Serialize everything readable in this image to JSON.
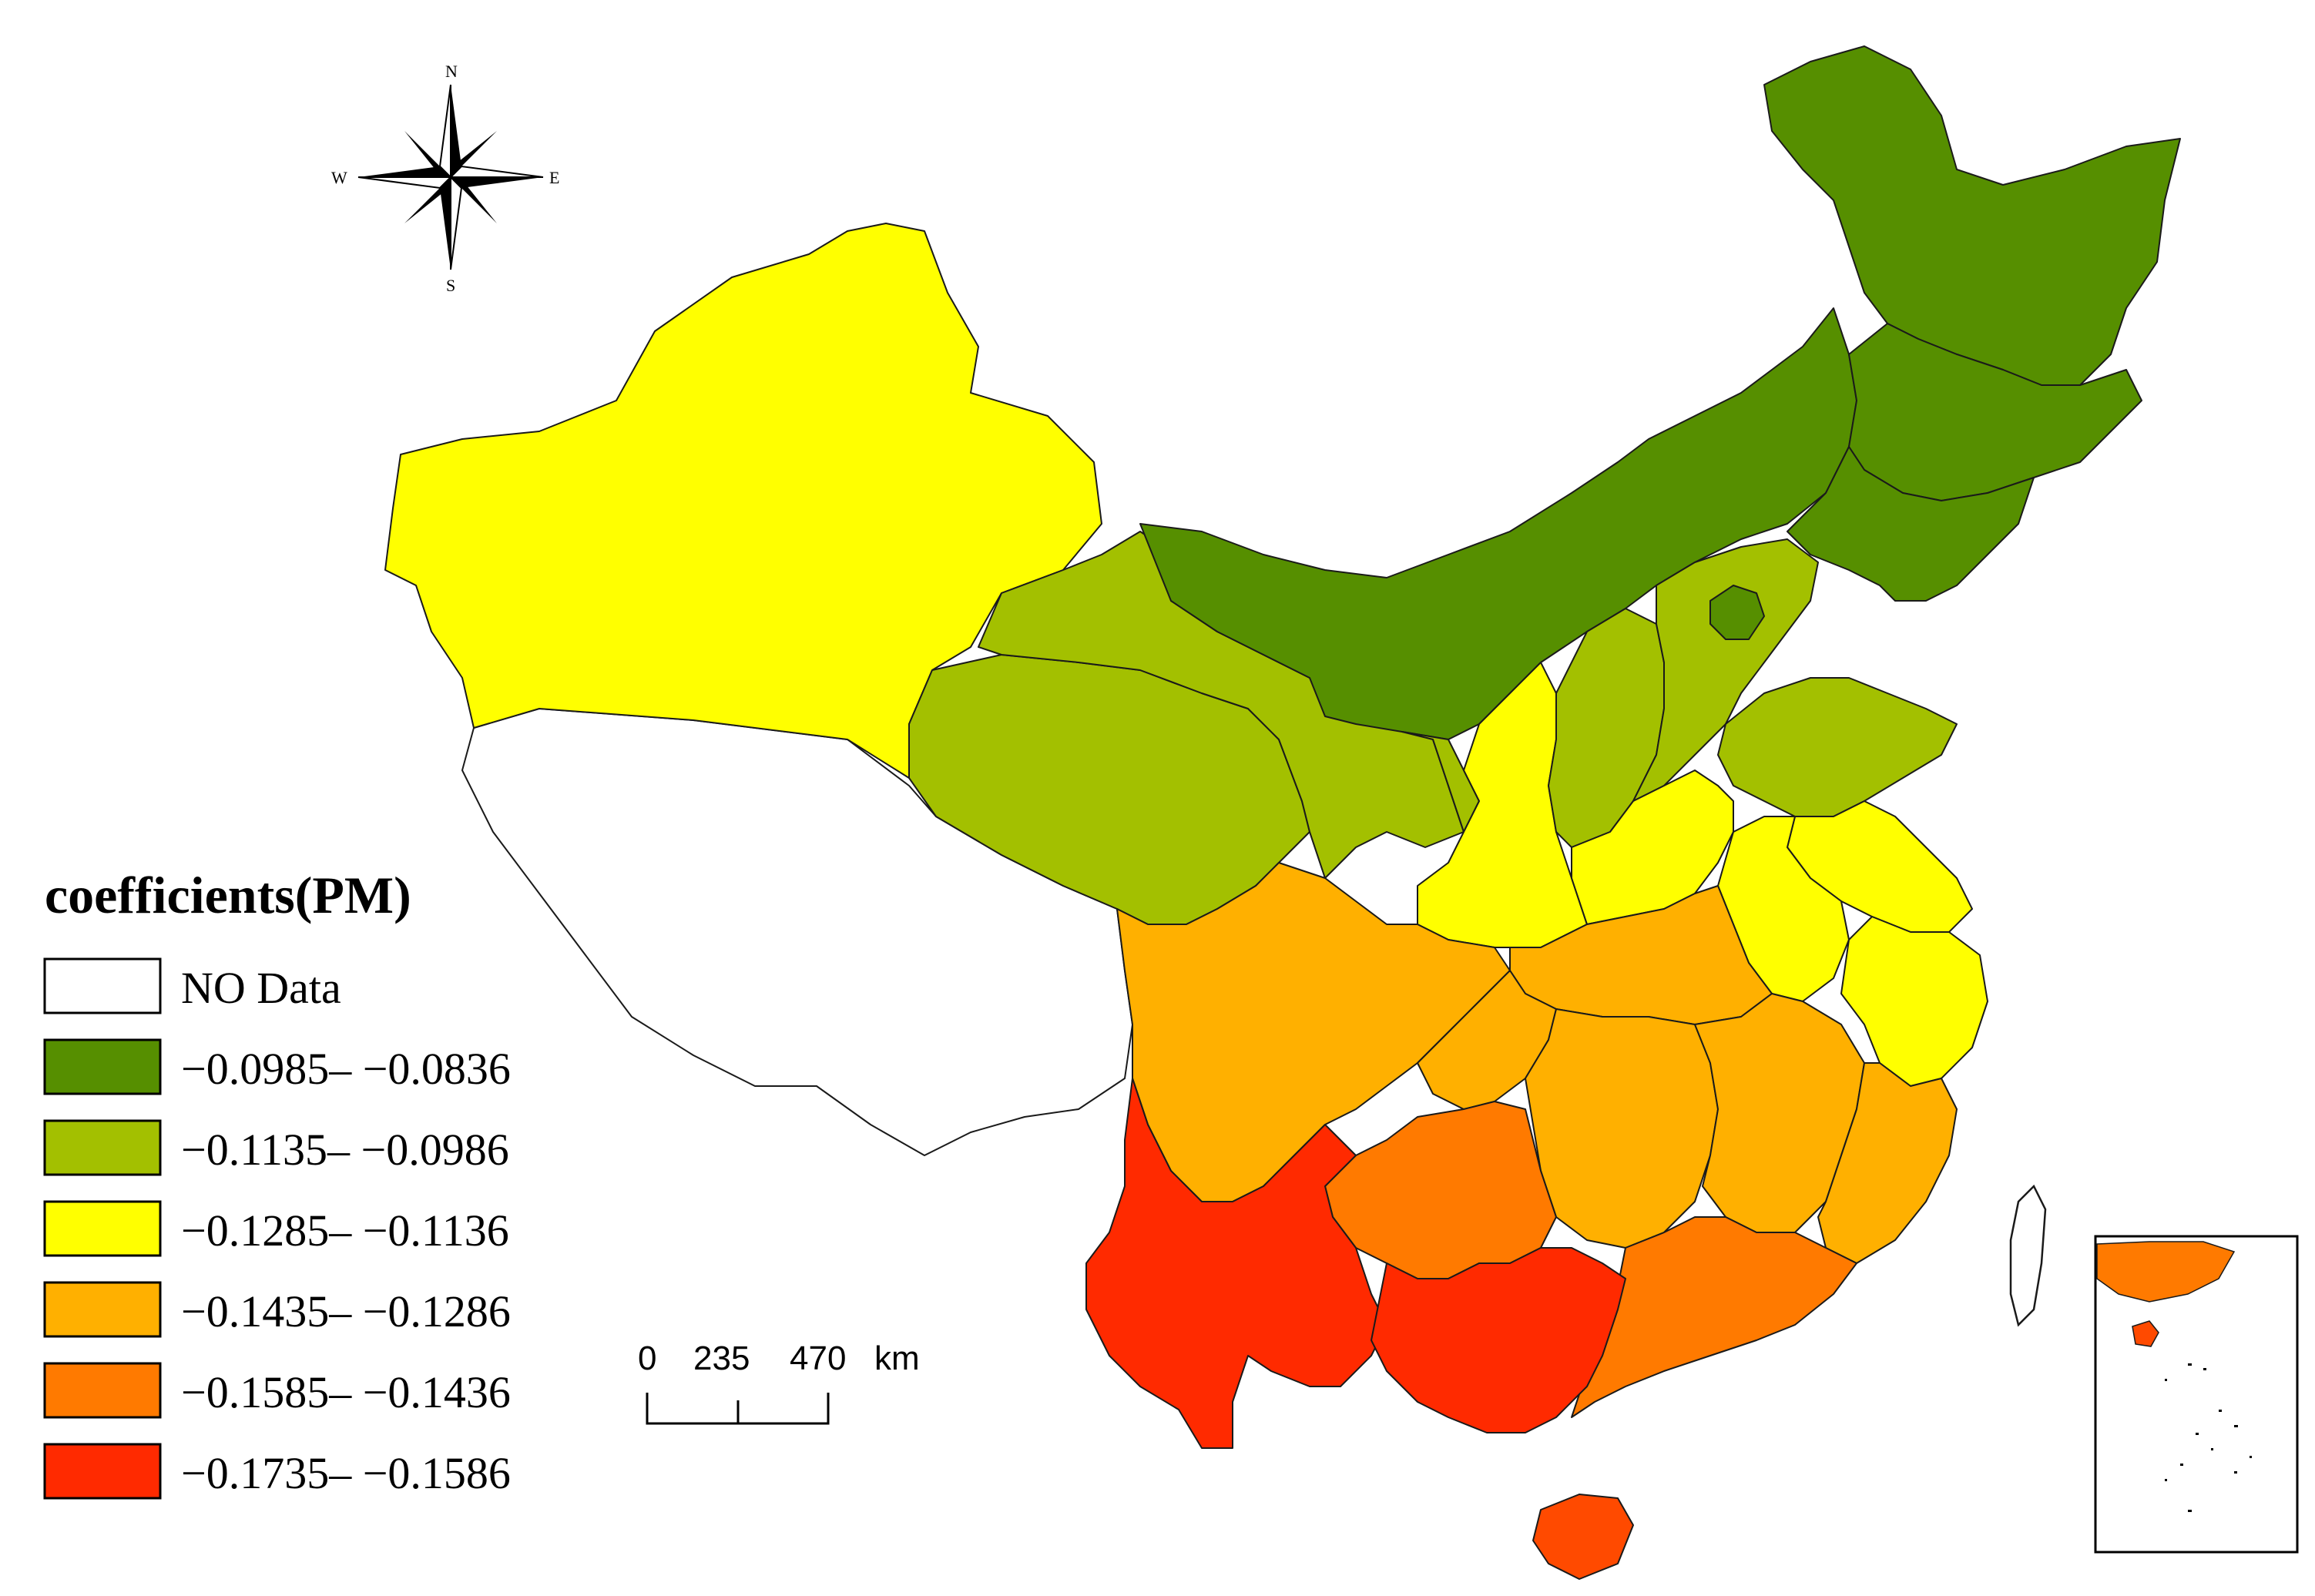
{
  "compass": {
    "n": "N",
    "s": "S",
    "e": "E",
    "w": "W"
  },
  "legend": {
    "title": "coefficients(PM)",
    "items": [
      {
        "label": "NO Data",
        "color": "#ffffff"
      },
      {
        "label": "−0.0985– −0.0836",
        "color": "#568f00"
      },
      {
        "label": "−0.1135– −0.0986",
        "color": "#a3c000"
      },
      {
        "label": "−0.1285– −0.1136",
        "color": "#ffff00"
      },
      {
        "label": "−0.1435– −0.1286",
        "color": "#ffb000"
      },
      {
        "label": "−0.1585– −0.1436",
        "color": "#ff7a00"
      },
      {
        "label": "−0.1735– −0.1586",
        "color": "#ff2a00"
      }
    ]
  },
  "scale_bar": {
    "ticks": [
      "0",
      "235",
      "470"
    ],
    "unit": "km"
  }
}
